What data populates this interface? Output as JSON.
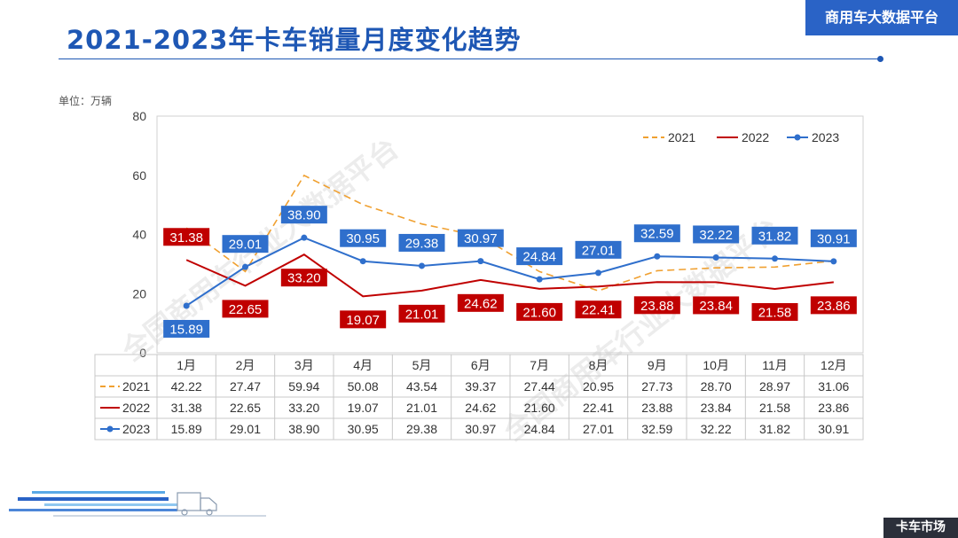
{
  "header": {
    "title": "2021-2023年卡车销量月度变化趋势",
    "brand": "商用车大数据平台"
  },
  "unit_label": "单位：万辆",
  "footer": {
    "tag": "卡车市场"
  },
  "watermark": "全国商用车行业大数据平台",
  "colors": {
    "accent": "#1e57b4",
    "s2021": "#f0a030",
    "s2022": "#c00000",
    "s2023": "#2f6fcc"
  },
  "chart_data": {
    "type": "line",
    "categories": [
      "1月",
      "2月",
      "3月",
      "4月",
      "5月",
      "6月",
      "7月",
      "8月",
      "9月",
      "10月",
      "11月",
      "12月"
    ],
    "ylim": [
      0,
      80
    ],
    "yticks": [
      0,
      20,
      40,
      60,
      80
    ],
    "legend_position": "top-right",
    "grid": false,
    "series": [
      {
        "name": "2021",
        "style": "dashed",
        "color": "#f0a030",
        "labels": false,
        "values": [
          42.22,
          27.47,
          59.94,
          50.08,
          43.54,
          39.37,
          27.44,
          20.95,
          27.73,
          28.7,
          28.97,
          31.06
        ]
      },
      {
        "name": "2022",
        "style": "solid",
        "color": "#c00000",
        "labels": true,
        "values": [
          31.38,
          22.65,
          33.2,
          19.07,
          21.01,
          24.62,
          21.6,
          22.41,
          23.88,
          23.84,
          21.58,
          23.86
        ]
      },
      {
        "name": "2023",
        "style": "solid-marker",
        "color": "#2f6fcc",
        "labels": true,
        "values": [
          15.89,
          29.01,
          38.9,
          30.95,
          29.38,
          30.97,
          24.84,
          27.01,
          32.59,
          32.22,
          31.82,
          30.91
        ]
      }
    ],
    "table": {
      "rows": [
        {
          "series": "2021",
          "values": [
            "42.22",
            "27.47",
            "59.94",
            "50.08",
            "43.54",
            "39.37",
            "27.44",
            "20.95",
            "27.73",
            "28.70",
            "28.97",
            "31.06"
          ]
        },
        {
          "series": "2022",
          "values": [
            "31.38",
            "22.65",
            "33.20",
            "19.07",
            "21.01",
            "24.62",
            "21.60",
            "22.41",
            "23.88",
            "23.84",
            "21.58",
            "23.86"
          ]
        },
        {
          "series": "2023",
          "values": [
            "15.89",
            "29.01",
            "38.90",
            "30.95",
            "29.38",
            "30.97",
            "24.84",
            "27.01",
            "32.59",
            "32.22",
            "31.82",
            "30.91"
          ]
        }
      ]
    }
  }
}
